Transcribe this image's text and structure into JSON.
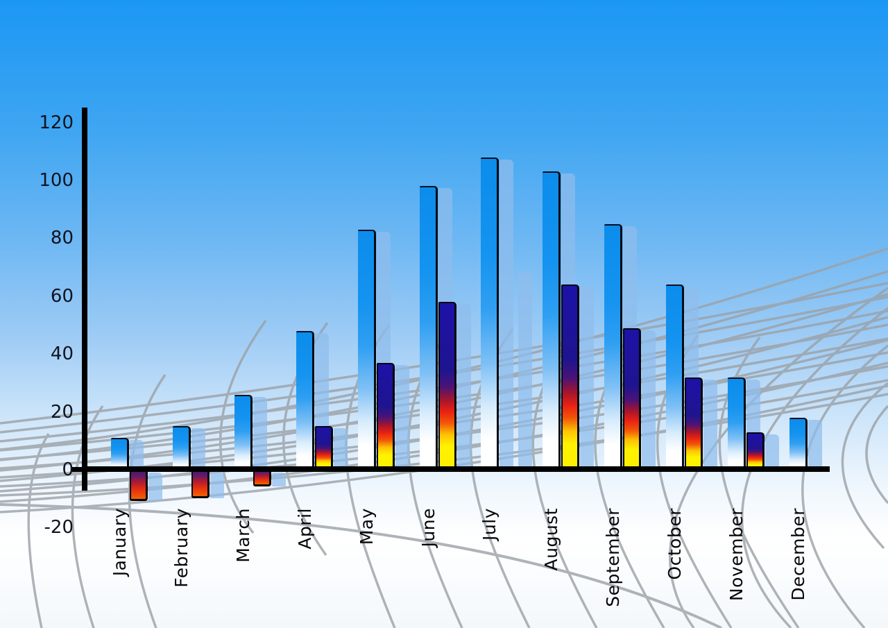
{
  "chart_data": {
    "type": "bar",
    "title": "",
    "xlabel": "",
    "ylabel": "",
    "categories": [
      "January",
      "February",
      "March",
      "April",
      "May",
      "June",
      "July",
      "August",
      "September",
      "October",
      "November",
      "December"
    ],
    "series": [
      {
        "name": "primary-blue-bars",
        "style": "blue-gradient",
        "values": [
          11,
          15,
          26,
          48,
          83,
          98,
          108,
          103,
          85,
          64,
          32,
          18
        ]
      },
      {
        "name": "secondary-bars",
        "style": "rainbow-gradient",
        "values": [
          -10,
          -9,
          -5,
          15,
          37,
          58,
          69,
          64,
          49,
          32,
          13,
          null
        ],
        "bar_styles": [
          "rainbow-neg",
          "rainbow-neg",
          "rainbow-neg",
          "rainbow",
          "rainbow",
          "rainbow",
          "blue2",
          "rainbow",
          "rainbow",
          "rainbow",
          "rainbow",
          "none"
        ]
      }
    ],
    "ylim": [
      -20,
      120
    ],
    "y_ticks": [
      120,
      100,
      80,
      60,
      40,
      20,
      0,
      -20
    ],
    "legend": "none",
    "grid": "decorative curved perspective mesh",
    "notes": "3D-style clip-art bar chart; each bar casts a translucent light-blue echo offset to the right; Jan-Mar secondary bars are negative; July secondary bar is blue; December has no secondary bar"
  },
  "colors": {
    "sky_top": "#1b97f4",
    "sky_bottom": "#f3f8fb",
    "bar_blue_top": "#0c8ceb",
    "bar_rainbow_navy": "#1d12a8",
    "bar_rainbow_red": "#e92113",
    "bar_rainbow_yellow": "#fff200",
    "negative_bar_top": "#30197f",
    "negative_bar_bottom": "#f26202",
    "echo_shadow": "rgba(143,189,235,0.72)",
    "axis": "#000000",
    "grid_line": "#9ba1a7",
    "tick_text": "#10131f",
    "month_text": "#060608"
  }
}
